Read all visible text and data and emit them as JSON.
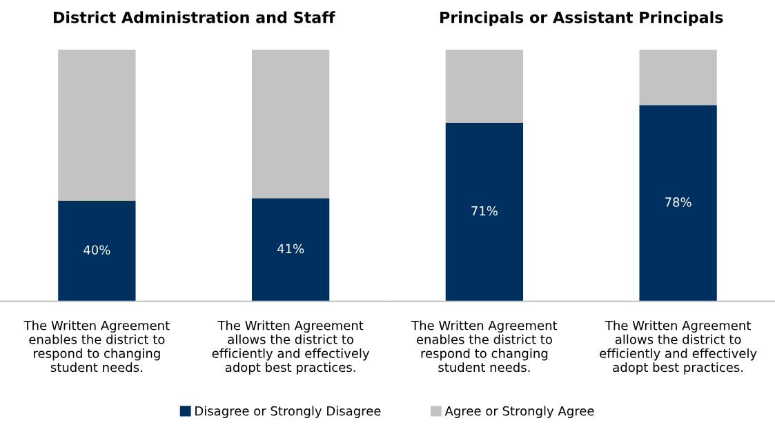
{
  "chart_data": [
    {
      "type": "bar",
      "title": "District Administration and Staff",
      "stacked": true,
      "legend": "bottom",
      "grid": false,
      "categories": [
        "The Written Agreement\nenables the district to\nrespond to changing\nstudent needs.",
        "The Written Agreement\nallows the district to\nefficiently and effectively\nadopt best practices."
      ],
      "series": [
        {
          "name": "Disagree or Strongly Disagree",
          "color": "#003060",
          "values": [
            40,
            41
          ],
          "value_labels": [
            "40%",
            "41%"
          ]
        },
        {
          "name": "Agree or Strongly Agree",
          "color": "#c3c3c3",
          "values": [
            60,
            59
          ]
        }
      ]
    },
    {
      "type": "bar",
      "title": "Principals or Assistant Principals",
      "stacked": true,
      "legend": "bottom",
      "grid": false,
      "categories": [
        "The Written Agreement\nenables the district to\nrespond to changing\nstudent needs.",
        "The Written Agreement\nallows the district to\nefficiently and effectively\nadopt best practices."
      ],
      "series": [
        {
          "name": "Disagree or Strongly Disagree",
          "color": "#003060",
          "values": [
            71,
            78
          ],
          "value_labels": [
            "71%",
            "78%"
          ]
        },
        {
          "name": "Agree or Strongly Agree",
          "color": "#c3c3c3",
          "values": [
            29,
            22
          ]
        }
      ]
    }
  ]
}
